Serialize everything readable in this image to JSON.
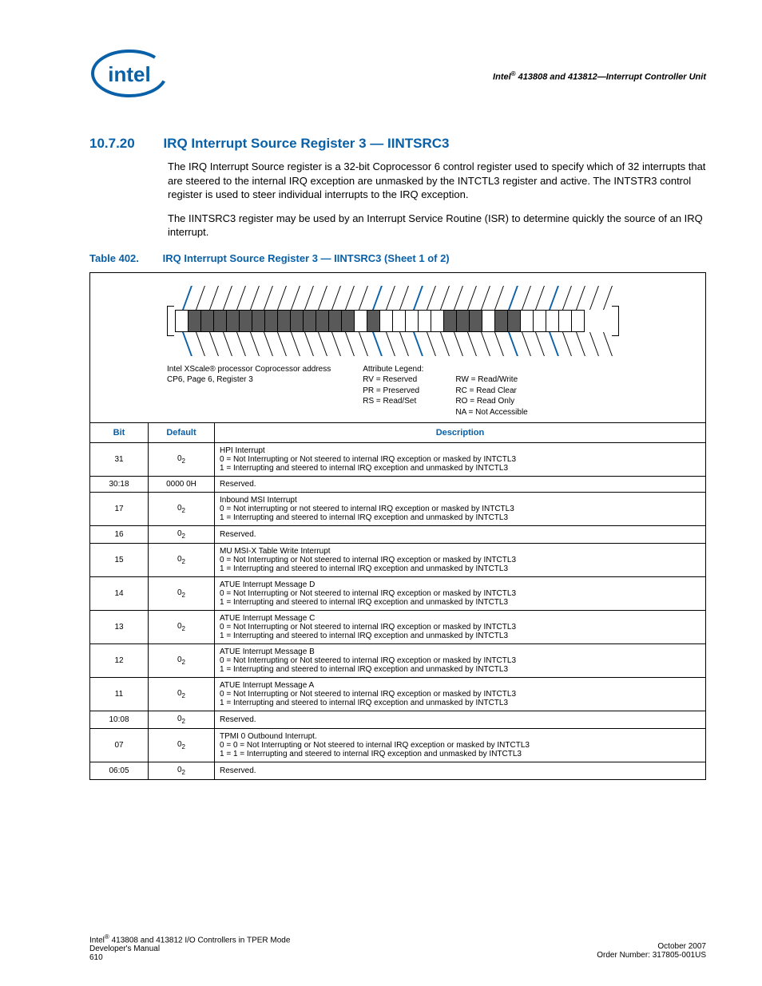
{
  "header": {
    "right_text": "Intel® 413808 and 413812—Interrupt Controller Unit"
  },
  "section": {
    "number": "10.7.20",
    "title": "IRQ Interrupt Source Register 3 — IINTSRC3"
  },
  "paragraphs": {
    "p1": "The IRQ Interrupt Source register is a 32-bit Coprocessor 6 control register used to specify which of 32 interrupts that are steered to the internal IRQ exception are unmasked by the INTCTL3 register and active. The INTSTR3 control register is used to steer individual interrupts to the IRQ exception.",
    "p2": "The IINTSRC3 register may be used by an Interrupt Service Routine (ISR) to determine quickly the source of an IRQ interrupt."
  },
  "table_caption": {
    "num": "Table 402.",
    "title": "IRQ Interrupt Source Register 3 — IINTSRC3 (Sheet 1 of 2)"
  },
  "diagram": {
    "coproc_line1": "Intel XScale® processor Coprocessor address",
    "coproc_line2": "CP6, Page 6, Register 3",
    "attr_legend_title": "Attribute Legend:",
    "attr1": "RV = Reserved",
    "attr2": "PR = Preserved",
    "attr3": "RS = Read/Set",
    "attr4": "RW = Read/Write",
    "attr5": "RC = Read Clear",
    "attr6": "RO = Read Only",
    "attr7": "NA = Not Accessible"
  },
  "columns": {
    "c1": "Bit",
    "c2": "Default",
    "c3": "Description"
  },
  "rows": [
    {
      "bit": "31",
      "def": "0",
      "sub": "2",
      "desc": "HPI Interrupt\n0 =  Not Interrupting or Not steered to internal IRQ exception or masked by INTCTL3\n1 =  Interrupting and steered to internal IRQ exception and unmasked by INTCTL3"
    },
    {
      "bit": "30:18",
      "def": "0000 0H",
      "sub": "",
      "desc": "Reserved."
    },
    {
      "bit": "17",
      "def": "0",
      "sub": "2",
      "desc": "Inbound MSI Interrupt\n0 =  Not interrupting or not steered to internal IRQ exception or masked by INTCTL3\n1 =  Interrupting and steered to internal IRQ exception and unmasked by INTCTL3"
    },
    {
      "bit": "16",
      "def": "0",
      "sub": "2",
      "desc": "Reserved."
    },
    {
      "bit": "15",
      "def": "0",
      "sub": "2",
      "desc": "MU MSI-X Table Write Interrupt\n0 =  Not Interrupting or Not steered to internal IRQ exception or masked by INTCTL3\n1 =  Interrupting and steered to internal IRQ exception and unmasked by INTCTL3"
    },
    {
      "bit": "14",
      "def": "0",
      "sub": "2",
      "desc": "ATUE Interrupt Message D\n0 =  Not Interrupting or Not steered to internal IRQ exception or masked by INTCTL3\n1 =  Interrupting and steered to internal IRQ exception and unmasked by INTCTL3"
    },
    {
      "bit": "13",
      "def": "0",
      "sub": "2",
      "desc": "ATUE Interrupt Message C\n0 =  Not Interrupting or Not steered to internal IRQ exception or masked by INTCTL3\n1 =  Interrupting and steered to internal IRQ exception and unmasked by INTCTL3"
    },
    {
      "bit": "12",
      "def": "0",
      "sub": "2",
      "desc": "ATUE Interrupt Message B\n0 =  Not Interrupting or Not steered to internal IRQ exception or masked by INTCTL3\n1 =  Interrupting and steered to internal IRQ exception and unmasked by INTCTL3"
    },
    {
      "bit": "11",
      "def": "0",
      "sub": "2",
      "desc": "ATUE Interrupt Message A\n0 =  Not Interrupting or Not steered to internal IRQ exception or masked by INTCTL3\n1 =  Interrupting and steered to internal IRQ exception and unmasked by INTCTL3"
    },
    {
      "bit": "10:08",
      "def": "0",
      "sub": "2",
      "desc": "Reserved."
    },
    {
      "bit": "07",
      "def": "0",
      "sub": "2",
      "desc": "TPMI 0 Outbound Interrupt.\n0 =  0 = Not Interrupting or Not steered to internal IRQ exception or masked by INTCTL3\n1 =  1 = Interrupting and steered to internal IRQ exception and unmasked by INTCTL3"
    },
    {
      "bit": "06:05",
      "def": "0",
      "sub": "2",
      "desc": "Reserved."
    }
  ],
  "bit_colors": [
    "w",
    "r",
    "r",
    "r",
    "r",
    "r",
    "r",
    "r",
    "r",
    "r",
    "r",
    "r",
    "r",
    "r",
    "w",
    "r",
    "w",
    "w",
    "w",
    "w",
    "w",
    "r",
    "r",
    "r",
    "w",
    "r",
    "r",
    "w",
    "w",
    "w",
    "w",
    "w"
  ],
  "blue_slants": [
    0,
    14,
    17,
    24,
    27
  ],
  "footer": {
    "l1": "Intel® 413808 and 413812 I/O Controllers in TPER Mode",
    "l2": "Developer's Manual",
    "l3": "610",
    "r1": "October 2007",
    "r2": "Order Number: 317805-001US"
  }
}
